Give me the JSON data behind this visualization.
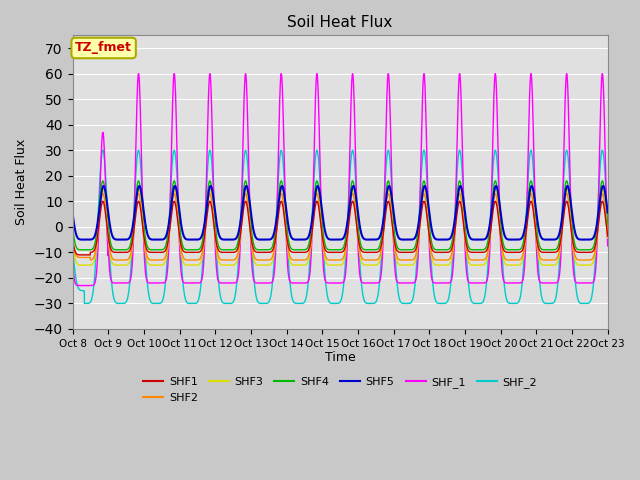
{
  "title": "Soil Heat Flux",
  "ylabel": "Soil Heat Flux",
  "xlabel": "Time",
  "ylim": [
    -40,
    75
  ],
  "yticks": [
    -40,
    -30,
    -20,
    -10,
    0,
    10,
    20,
    30,
    40,
    50,
    60,
    70
  ],
  "annotation": "TZ_fmet",
  "x_tick_labels": [
    "Oct 8",
    "Oct 9",
    "Oct 10",
    "Oct 11",
    "Oct 12",
    "Oct 13",
    "Oct 14",
    "Oct 15",
    "Oct 16",
    "Oct 17",
    "Oct 18",
    "Oct 19",
    "Oct 20",
    "Oct 21",
    "Oct 22",
    "Oct 23"
  ],
  "fig_bg": "#c8c8c8",
  "plot_bg": "#e0e0e0",
  "grid_color": "#ffffff",
  "series_colors": {
    "SHF1": "#cc0000",
    "SHF2": "#ff8800",
    "SHF3": "#dddd00",
    "SHF4": "#00bb00",
    "SHF5": "#0000cc",
    "SHF_1": "#ff00ff",
    "SHF_2": "#00cccc"
  },
  "n_days": 15,
  "points_per_day": 240,
  "annotation_facecolor": "#ffffaa",
  "annotation_edgecolor": "#aaaa00",
  "annotation_textcolor": "#cc0000"
}
